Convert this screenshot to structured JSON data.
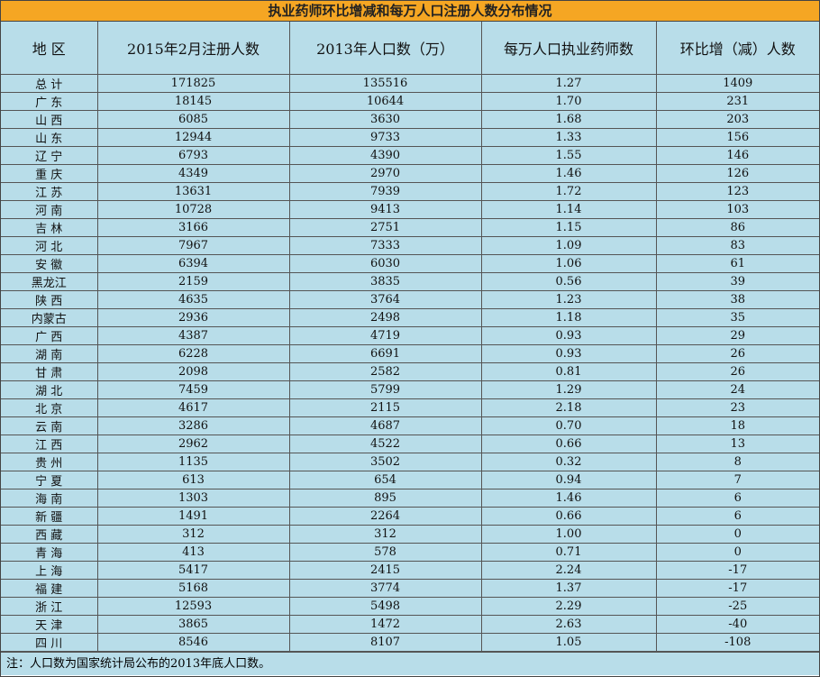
{
  "title": "执业药师环比增减和每万人口注册人数分布情况",
  "table": {
    "header": [
      "地 区",
      "2015年2月注册人数",
      "2013年人口数（万）",
      "每万人口执业药师数",
      "环比增（减）人数"
    ],
    "rows": [
      [
        "总 计",
        "171825",
        "135516",
        "1.27",
        "1409"
      ],
      [
        "广 东",
        "18145",
        "10644",
        "1.70",
        "231"
      ],
      [
        "山 西",
        "6085",
        "3630",
        "1.68",
        "203"
      ],
      [
        "山 东",
        "12944",
        "9733",
        "1.33",
        "156"
      ],
      [
        "辽 宁",
        "6793",
        "4390",
        "1.55",
        "146"
      ],
      [
        "重 庆",
        "4349",
        "2970",
        "1.46",
        "126"
      ],
      [
        "江 苏",
        "13631",
        "7939",
        "1.72",
        "123"
      ],
      [
        "河 南",
        "10728",
        "9413",
        "1.14",
        "103"
      ],
      [
        "吉 林",
        "3166",
        "2751",
        "1.15",
        "86"
      ],
      [
        "河 北",
        "7967",
        "7333",
        "1.09",
        "83"
      ],
      [
        "安 徽",
        "6394",
        "6030",
        "1.06",
        "61"
      ],
      [
        "黑龙江",
        "2159",
        "3835",
        "0.56",
        "39"
      ],
      [
        "陕 西",
        "4635",
        "3764",
        "1.23",
        "38"
      ],
      [
        "内蒙古",
        "2936",
        "2498",
        "1.18",
        "35"
      ],
      [
        "广 西",
        "4387",
        "4719",
        "0.93",
        "29"
      ],
      [
        "湖 南",
        "6228",
        "6691",
        "0.93",
        "26"
      ],
      [
        "甘 肃",
        "2098",
        "2582",
        "0.81",
        "26"
      ],
      [
        "湖 北",
        "7459",
        "5799",
        "1.29",
        "24"
      ],
      [
        "北 京",
        "4617",
        "2115",
        "2.18",
        "23"
      ],
      [
        "云 南",
        "3286",
        "4687",
        "0.70",
        "18"
      ],
      [
        "江 西",
        "2962",
        "4522",
        "0.66",
        "13"
      ],
      [
        "贵 州",
        "1135",
        "3502",
        "0.32",
        "8"
      ],
      [
        "宁 夏",
        "613",
        "654",
        "0.94",
        "7"
      ],
      [
        "海 南",
        "1303",
        "895",
        "1.46",
        "6"
      ],
      [
        "新 疆",
        "1491",
        "2264",
        "0.66",
        "6"
      ],
      [
        "西 藏",
        "312",
        "312",
        "1.00",
        "0"
      ],
      [
        "青 海",
        "413",
        "578",
        "0.71",
        "0"
      ],
      [
        "上 海",
        "5417",
        "2415",
        "2.24",
        "-17"
      ],
      [
        "福 建",
        "5168",
        "3774",
        "1.37",
        "-17"
      ],
      [
        "浙 江",
        "12593",
        "5498",
        "2.29",
        "-25"
      ],
      [
        "天 津",
        "3865",
        "1472",
        "2.63",
        "-40"
      ],
      [
        "四 川",
        "8546",
        "8107",
        "1.05",
        "-108"
      ]
    ]
  },
  "note": "注：人口数为国家统计局公布的2013年底人口数。"
}
